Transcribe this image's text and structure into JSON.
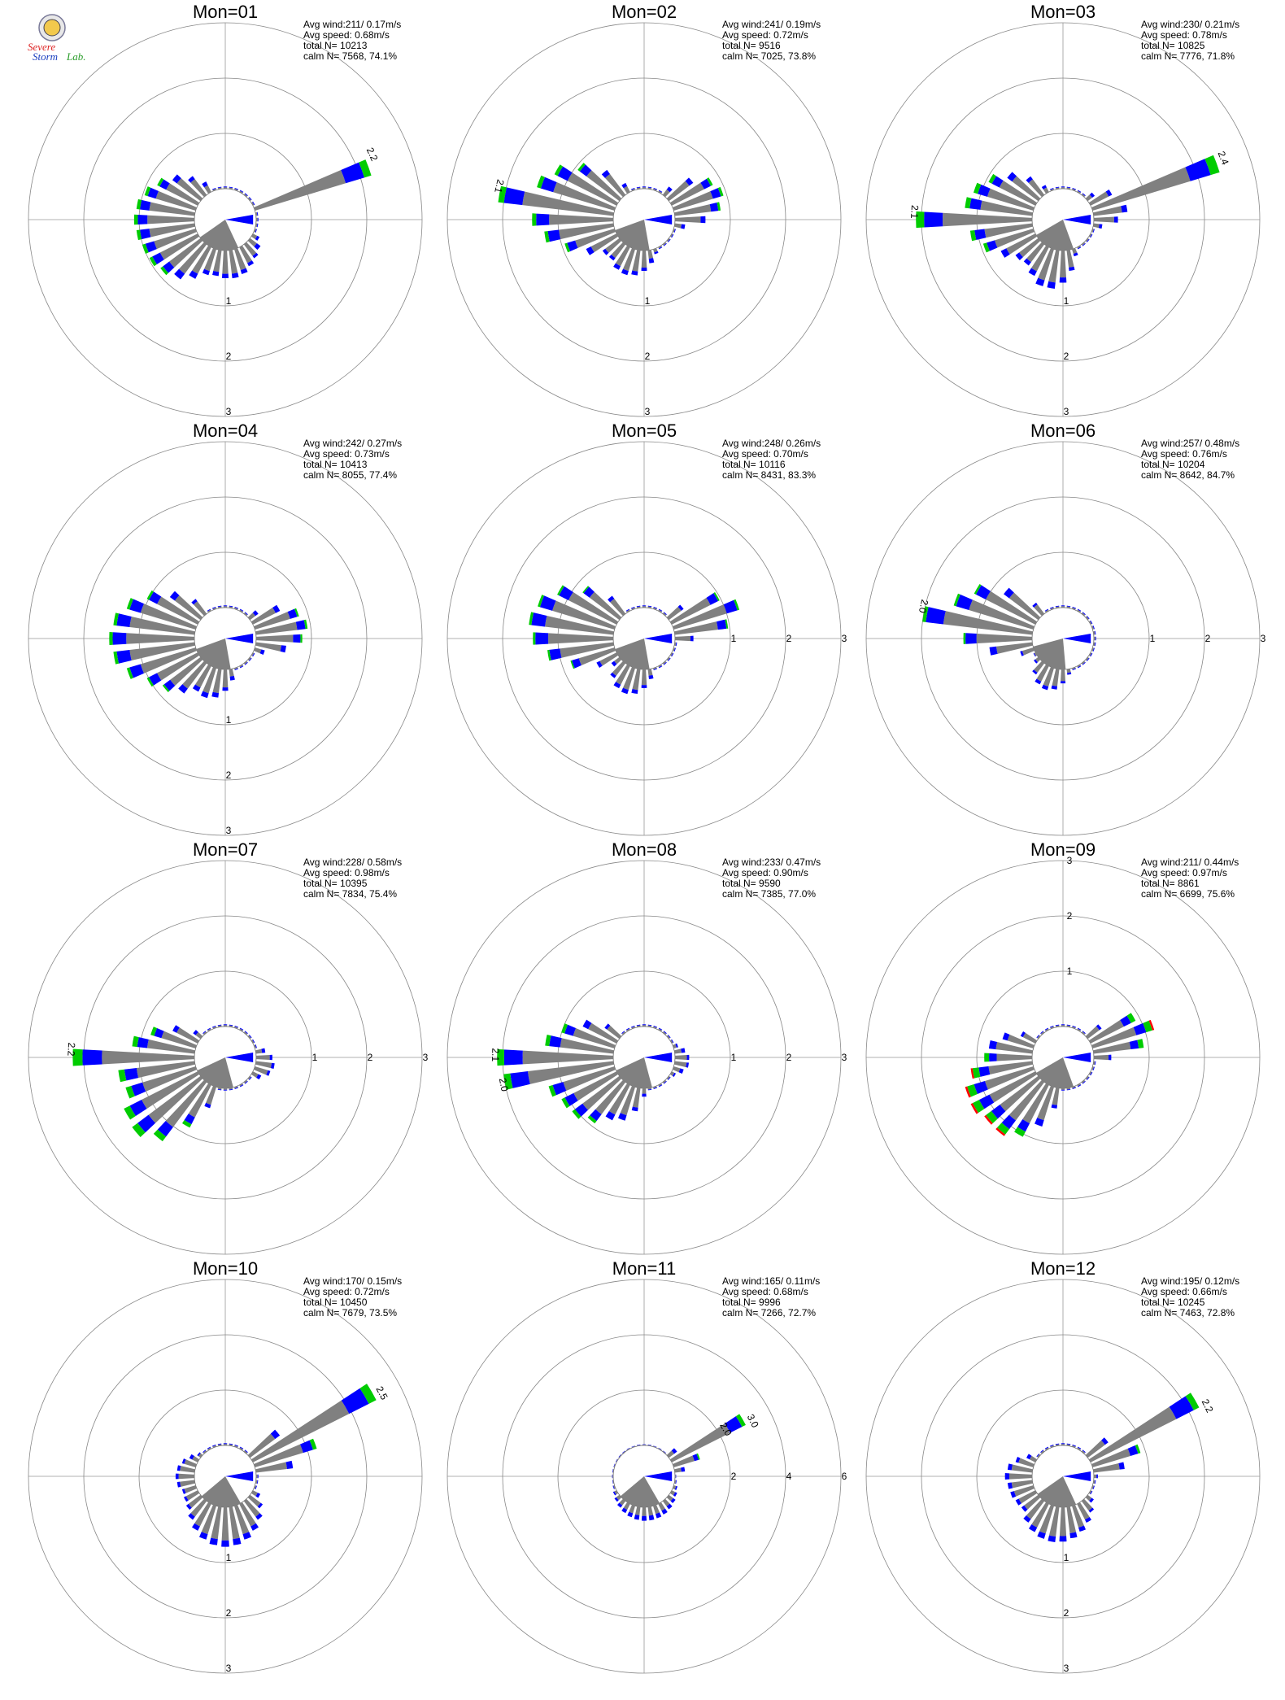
{
  "logo": {
    "line1": "Severe",
    "line2": "Storm",
    "line3": "Lab."
  },
  "colors": {
    "calm": "#808080",
    "speed_low": "#808080",
    "speed_mid": "#0000ff",
    "speed_high": "#00cc00",
    "speed_extreme": "#ff0000",
    "grid": "#888888",
    "axis": "#999999"
  },
  "chart_data": [
    {
      "type": "wind-rose",
      "title": "Mon=01",
      "stats": [
        "Avg wind:211/ 0.17m/s",
        "Avg speed: 0.68m/s",
        "total N=      10213",
        "calm N=   7568,  74.1%"
      ],
      "ring_labels": [
        "1",
        "2",
        "3"
      ],
      "ring_values": [
        1,
        2,
        3
      ],
      "ring_label_side": "bottom",
      "calm_dir": 195,
      "avg_dir": 211,
      "mean_len": 0.58,
      "peak": {
        "dir": 66,
        "value": 2.2,
        "label": "2.2"
      },
      "peak2": null,
      "lobes": [
        {
          "center": 270,
          "width": 70,
          "amp": 0.7
        },
        {
          "center": 200,
          "width": 55,
          "amp": 0.3
        },
        {
          "center": 150,
          "width": 40,
          "amp": 0.2
        }
      ],
      "green": 0.06,
      "red": 0
    },
    {
      "type": "wind-rose",
      "title": "Mon=02",
      "stats": [
        "Avg wind:241/ 0.19m/s",
        "Avg speed: 0.72m/s",
        "total N=       9516",
        "calm N=   7025,  73.8%"
      ],
      "ring_labels": [
        "1",
        "2",
        "3"
      ],
      "ring_values": [
        1,
        2,
        3
      ],
      "ring_label_side": "bottom",
      "calm_dir": 210,
      "avg_dir": 241,
      "mean_len": 0.6,
      "peak": {
        "dir": 283,
        "value": 2.1,
        "label": "2.1"
      },
      "peak2": null,
      "lobes": [
        {
          "center": 280,
          "width": 55,
          "amp": 1.0
        },
        {
          "center": 70,
          "width": 35,
          "amp": 0.6
        },
        {
          "center": 200,
          "width": 45,
          "amp": 0.3
        }
      ],
      "green": 0.05,
      "red": 0
    },
    {
      "type": "wind-rose",
      "title": "Mon=03",
      "stats": [
        "Avg wind:230/ 0.21m/s",
        "Avg speed: 0.78m/s",
        "total N=      10825",
        "calm N=   7776,  71.8%"
      ],
      "ring_labels": [
        "1",
        "2",
        "3"
      ],
      "ring_values": [
        1,
        2,
        3
      ],
      "ring_label_side": "bottom",
      "calm_dir": 200,
      "avg_dir": 230,
      "mean_len": 0.6,
      "peak": {
        "dir": 69,
        "value": 2.4,
        "label": "2.4"
      },
      "peak2": {
        "dir": 273,
        "value": 2.1,
        "label": "2.1"
      },
      "lobes": [
        {
          "center": 275,
          "width": 60,
          "amp": 0.8
        },
        {
          "center": 195,
          "width": 40,
          "amp": 0.45
        },
        {
          "center": 75,
          "width": 30,
          "amp": 0.4
        }
      ],
      "green": 0.07,
      "red": 0
    },
    {
      "type": "wind-rose",
      "title": "Mon=04",
      "stats": [
        "Avg wind:242/ 0.27m/s",
        "Avg speed: 0.73m/s",
        "total N=      10413",
        "calm N=   8055,  77.4%"
      ],
      "ring_labels": [
        "1",
        "2",
        "3"
      ],
      "ring_values": [
        1,
        2,
        3
      ],
      "ring_label_side": "bottom",
      "calm_dir": 210,
      "avg_dir": 242,
      "mean_len": 0.6,
      "peak": null,
      "peak2": null,
      "lobes": [
        {
          "center": 270,
          "width": 60,
          "amp": 1.0
        },
        {
          "center": 80,
          "width": 35,
          "amp": 0.6
        },
        {
          "center": 200,
          "width": 40,
          "amp": 0.35
        }
      ],
      "green": 0.04,
      "red": 0
    },
    {
      "type": "wind-rose",
      "title": "Mon=05",
      "stats": [
        "Avg wind:248/ 0.26m/s",
        "Avg speed: 0.70m/s",
        "total N=      10116",
        "calm N=   8431,  83.3%"
      ],
      "ring_labels": [
        "1",
        "2",
        "3"
      ],
      "ring_values": [
        1,
        2,
        3
      ],
      "ring_label_side": "right",
      "calm_dir": 210,
      "avg_dir": 248,
      "mean_len": 0.55,
      "peak": null,
      "peak2": null,
      "lobes": [
        {
          "center": 280,
          "width": 50,
          "amp": 1.0
        },
        {
          "center": 70,
          "width": 25,
          "amp": 0.8
        },
        {
          "center": 200,
          "width": 40,
          "amp": 0.3
        }
      ],
      "green": 0.03,
      "red": 0
    },
    {
      "type": "wind-rose",
      "title": "Mon=06",
      "stats": [
        "Avg wind:257/ 0.48m/s",
        "Avg speed: 0.76m/s",
        "total N=      10204",
        "calm N=   8642,  84.7%"
      ],
      "ring_labels": [
        "1",
        "2",
        "3"
      ],
      "ring_values": [
        1,
        2,
        3
      ],
      "ring_label_side": "right",
      "calm_dir": 215,
      "avg_dir": 257,
      "mean_len": 0.6,
      "peak": {
        "dir": 283,
        "value": 2.0,
        "label": "2.0"
      },
      "peak2": null,
      "lobes": [
        {
          "center": 285,
          "width": 40,
          "amp": 1.0
        },
        {
          "center": 200,
          "width": 35,
          "amp": 0.25
        }
      ],
      "green": 0.03,
      "red": 0
    },
    {
      "type": "wind-rose",
      "title": "Mon=07",
      "stats": [
        "Avg wind:228/ 0.58m/s",
        "Avg speed: 0.98m/s",
        "total N=      10395",
        "calm N=   7834,  75.4%"
      ],
      "ring_labels": [
        "1",
        "2",
        "3"
      ],
      "ring_values": [
        1,
        2,
        3
      ],
      "ring_label_side": "right",
      "calm_dir": 205,
      "avg_dir": 228,
      "mean_len": 0.62,
      "peak": {
        "dir": 273,
        "value": 2.2,
        "label": "2.2"
      },
      "peak2": null,
      "lobes": [
        {
          "center": 260,
          "width": 55,
          "amp": 0.9
        },
        {
          "center": 220,
          "width": 30,
          "amp": 0.55
        },
        {
          "center": 100,
          "width": 30,
          "amp": 0.2
        }
      ],
      "green": 0.08,
      "red": 0
    },
    {
      "type": "wind-rose",
      "title": "Mon=08",
      "stats": [
        "Avg wind:233/ 0.47m/s",
        "Avg speed: 0.90m/s",
        "total N=       9590",
        "calm N=   7385,  77.0%"
      ],
      "ring_labels": [
        "1",
        "2",
        "3"
      ],
      "ring_values": [
        1,
        2,
        3
      ],
      "ring_label_side": "right",
      "calm_dir": 205,
      "avg_dir": 233,
      "mean_len": 0.6,
      "peak": {
        "dir": 271,
        "value": 2.1,
        "label": "2.1"
      },
      "peak2": {
        "dir": 259,
        "value": 2.0,
        "label": "2.0"
      },
      "lobes": [
        {
          "center": 265,
          "width": 55,
          "amp": 0.9
        },
        {
          "center": 210,
          "width": 35,
          "amp": 0.45
        },
        {
          "center": 95,
          "width": 30,
          "amp": 0.15
        }
      ],
      "green": 0.06,
      "red": 0
    },
    {
      "type": "wind-rose",
      "title": "Mon=09",
      "stats": [
        "Avg wind:211/ 0.44m/s",
        "Avg speed: 0.97m/s",
        "total N=       8861",
        "calm N=   6699,  75.6%"
      ],
      "ring_labels": [
        "1",
        "2",
        "3"
      ],
      "ring_values": [
        1,
        2,
        3
      ],
      "ring_label_side": "top",
      "calm_dir": 200,
      "avg_dir": 211,
      "mean_len": 0.55,
      "peak": null,
      "peak2": null,
      "lobes": [
        {
          "center": 225,
          "width": 45,
          "amp": 0.8
        },
        {
          "center": 270,
          "width": 40,
          "amp": 0.55
        },
        {
          "center": 70,
          "width": 25,
          "amp": 0.75
        }
      ],
      "green": 0.1,
      "red": 0.03
    },
    {
      "type": "wind-rose",
      "title": "Mon=10",
      "stats": [
        "Avg wind:170/ 0.15m/s",
        "Avg speed: 0.72m/s",
        "total N=      10450",
        "calm N=   7679,  73.5%"
      ],
      "ring_labels": [
        "1",
        "2",
        "3"
      ],
      "ring_values": [
        1,
        2,
        3
      ],
      "ring_label_side": "bottom",
      "calm_dir": 190,
      "avg_dir": 170,
      "mean_len": 0.55,
      "peak": {
        "dir": 62,
        "value": 2.5,
        "label": "2.5"
      },
      "peak2": null,
      "lobes": [
        {
          "center": 65,
          "width": 25,
          "amp": 0.8
        },
        {
          "center": 180,
          "width": 70,
          "amp": 0.45
        },
        {
          "center": 270,
          "width": 45,
          "amp": 0.2
        }
      ],
      "green": 0.06,
      "red": 0
    },
    {
      "type": "wind-rose",
      "title": "Mon=11",
      "stats": [
        "Avg wind:165/ 0.11m/s",
        "Avg speed: 0.68m/s",
        "total N=       9996",
        "calm N=   7266,  72.7%"
      ],
      "ring_labels": [
        "2",
        "4",
        "6"
      ],
      "ring_values": [
        2,
        4,
        6
      ],
      "ring_label_side": "right",
      "calm_dir": 190,
      "avg_dir": 165,
      "mean_len": 0.55,
      "peak": {
        "dir": 63,
        "value": 3.0,
        "label": "3.0"
      },
      "peak2": {
        "dir": 60,
        "value": 2.0,
        "label": "2.0"
      },
      "lobes": [
        {
          "center": 65,
          "width": 20,
          "amp": 0.35
        },
        {
          "center": 175,
          "width": 80,
          "amp": 0.15
        }
      ],
      "green": 0.05,
      "red": 0
    },
    {
      "type": "wind-rose",
      "title": "Mon=12",
      "stats": [
        "Avg wind:195/ 0.12m/s",
        "Avg speed: 0.66m/s",
        "total N=      10245",
        "calm N=   7463,  72.8%"
      ],
      "ring_labels": [
        "1",
        "2",
        "3"
      ],
      "ring_values": [
        1,
        2,
        3
      ],
      "ring_label_side": "bottom",
      "calm_dir": 195,
      "avg_dir": 195,
      "mean_len": 0.55,
      "peak": {
        "dir": 64,
        "value": 2.2,
        "label": "2.2"
      },
      "peak2": null,
      "lobes": [
        {
          "center": 66,
          "width": 25,
          "amp": 0.6
        },
        {
          "center": 190,
          "width": 70,
          "amp": 0.4
        },
        {
          "center": 270,
          "width": 40,
          "amp": 0.3
        }
      ],
      "green": 0.05,
      "red": 0
    }
  ]
}
